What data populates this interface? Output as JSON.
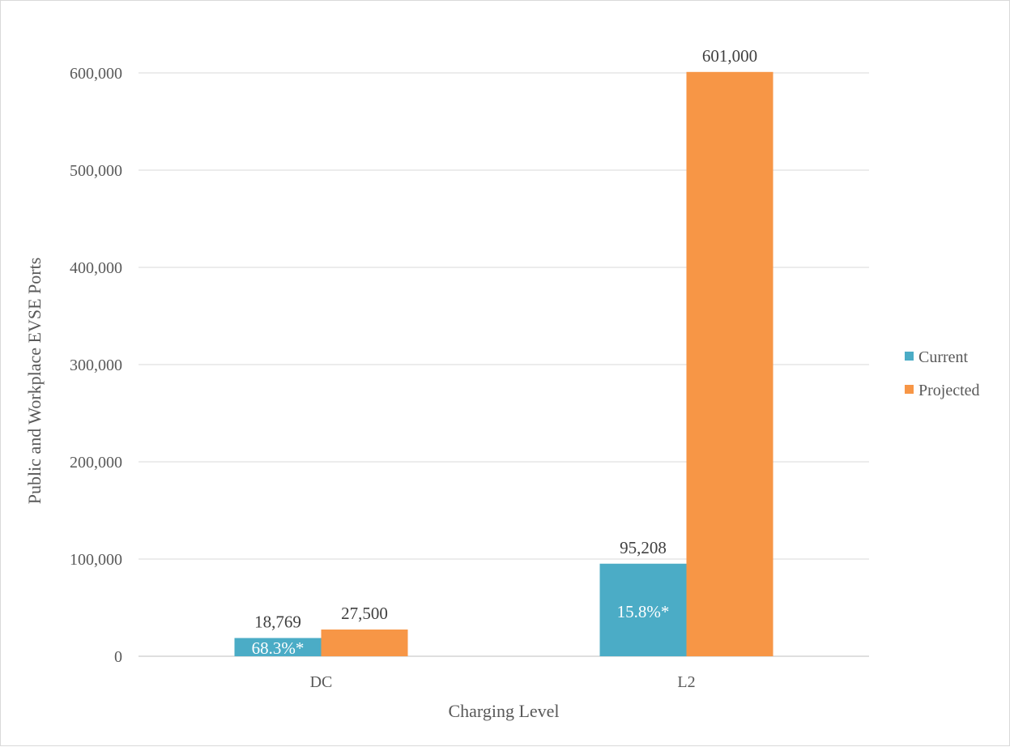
{
  "chart_data": {
    "type": "bar",
    "categories": [
      "DC",
      "L2"
    ],
    "series": [
      {
        "name": "Current",
        "color": "#4bacc6",
        "values": [
          18769,
          95208
        ],
        "labels": [
          "18,769",
          "95,208"
        ],
        "inner_labels": [
          "68.3%*",
          "15.8%*"
        ]
      },
      {
        "name": "Projected",
        "color": "#f79646",
        "values": [
          27500,
          601000
        ],
        "labels": [
          "27,500",
          "601,000"
        ]
      }
    ],
    "xlabel": "Charging Level",
    "ylabel": "Public and Workplace EVSE Ports",
    "ylim": [
      0,
      600000
    ],
    "yticks": [
      0,
      100000,
      200000,
      300000,
      400000,
      500000,
      600000
    ],
    "ytick_labels": [
      "0",
      "100,000",
      "200,000",
      "300,000",
      "400,000",
      "500,000",
      "600,000"
    ],
    "grid": true,
    "legend_position": "right"
  }
}
